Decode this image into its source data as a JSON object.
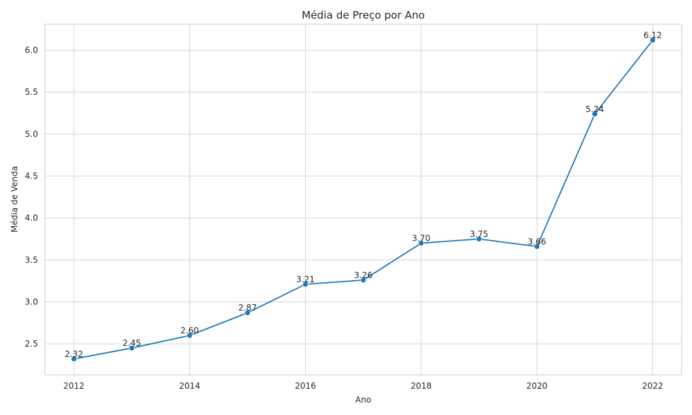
{
  "chart_data": {
    "type": "line",
    "title": "Média de Preço por Ano",
    "xlabel": "Ano",
    "ylabel": "Média de Venda",
    "x": [
      2012,
      2013,
      2014,
      2015,
      2016,
      2017,
      2018,
      2019,
      2020,
      2021,
      2022
    ],
    "series": [
      {
        "values": [
          2.32,
          2.45,
          2.6,
          2.87,
          3.21,
          3.26,
          3.7,
          3.75,
          3.66,
          5.24,
          6.12
        ],
        "labels": [
          "2.32",
          "2.45",
          "2.60",
          "2.87",
          "3.21",
          "3.26",
          "3.70",
          "3.75",
          "3.66",
          "5.24",
          "6.12"
        ],
        "color": "#1f77b4"
      }
    ],
    "xlim": [
      2011.5,
      2022.5
    ],
    "ylim": [
      2.13,
      6.31
    ],
    "xticks": [
      2012,
      2014,
      2016,
      2018,
      2020,
      2022
    ],
    "yticks": [
      "2.5",
      "3.0",
      "3.5",
      "4.0",
      "4.5",
      "5.0",
      "5.5",
      "6.0"
    ],
    "grid": true,
    "legend": "none"
  }
}
